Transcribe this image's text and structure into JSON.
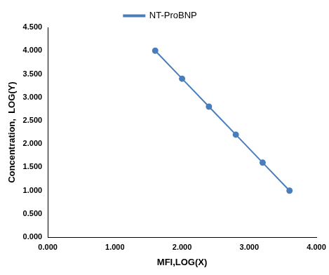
{
  "chart_data": {
    "type": "line",
    "x_label": "MFI,LOG(X)",
    "y_label": "Concentration,  LOG(Y)",
    "series": [
      {
        "name": "NT-ProBNP",
        "color": "#4a7ebb",
        "marker": "circle",
        "x": [
          1.6,
          2.0,
          2.4,
          2.8,
          3.2,
          3.6
        ],
        "values": [
          4.0,
          3.4,
          2.8,
          2.2,
          1.6,
          1.0
        ]
      }
    ],
    "xlim": [
      0,
      4
    ],
    "xticks": [
      {
        "value": 0,
        "label": "0.000"
      },
      {
        "value": 1,
        "label": "1.000"
      },
      {
        "value": 2,
        "label": "2.000"
      },
      {
        "value": 3,
        "label": "3.000"
      },
      {
        "value": 4,
        "label": "4.000"
      }
    ],
    "ylim": [
      0,
      4.5
    ],
    "yticks": [
      {
        "value": 0,
        "label": "0.000"
      },
      {
        "value": 0.5,
        "label": "0.500"
      },
      {
        "value": 1,
        "label": "1.000"
      },
      {
        "value": 1.5,
        "label": "1.500"
      },
      {
        "value": 2,
        "label": "2.000"
      },
      {
        "value": 2.5,
        "label": "2.500"
      },
      {
        "value": 3,
        "label": "3.000"
      },
      {
        "value": 3.5,
        "label": "3.500"
      },
      {
        "value": 4,
        "label": "4.000"
      },
      {
        "value": 4.5,
        "label": "4.500"
      }
    ],
    "grid": false,
    "legend": "top"
  }
}
